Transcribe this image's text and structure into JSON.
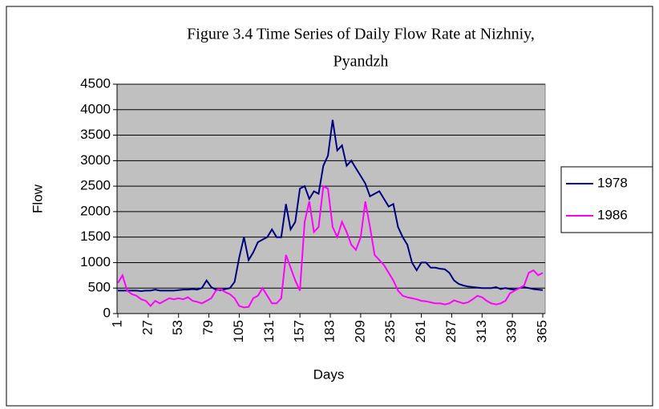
{
  "chart_data": {
    "type": "line",
    "title": [
      "Figure 3.4 Time Series of Daily Flow Rate at Nizhniy,",
      "Pyandzh"
    ],
    "x_label": "Days",
    "y_label": "Flow",
    "x": [
      1,
      5,
      9,
      13,
      17,
      21,
      25,
      29,
      33,
      37,
      41,
      45,
      49,
      53,
      57,
      61,
      65,
      69,
      73,
      77,
      81,
      85,
      89,
      93,
      97,
      101,
      105,
      109,
      113,
      117,
      121,
      125,
      129,
      133,
      137,
      141,
      145,
      149,
      153,
      157,
      161,
      165,
      169,
      173,
      177,
      181,
      185,
      189,
      193,
      197,
      201,
      205,
      209,
      213,
      217,
      221,
      225,
      229,
      233,
      237,
      241,
      245,
      249,
      253,
      257,
      261,
      265,
      269,
      273,
      277,
      281,
      285,
      289,
      293,
      297,
      301,
      305,
      309,
      313,
      317,
      321,
      325,
      329,
      333,
      337,
      341,
      345,
      349,
      353,
      357,
      361,
      365
    ],
    "series": [
      {
        "name": "1978",
        "color": "#000080",
        "values": [
          450,
          450,
          450,
          450,
          450,
          440,
          450,
          450,
          470,
          450,
          450,
          450,
          450,
          460,
          470,
          470,
          480,
          470,
          500,
          650,
          520,
          470,
          460,
          480,
          500,
          620,
          1100,
          1500,
          1050,
          1200,
          1400,
          1450,
          1500,
          1650,
          1500,
          1500,
          2150,
          1650,
          1800,
          2450,
          2500,
          2250,
          2400,
          2350,
          2900,
          3100,
          3800,
          3200,
          3300,
          2900,
          3000,
          2850,
          2700,
          2550,
          2300,
          2350,
          2400,
          2250,
          2100,
          2150,
          1700,
          1500,
          1350,
          1000,
          850,
          1000,
          1000,
          900,
          900,
          880,
          870,
          800,
          650,
          580,
          550,
          530,
          520,
          510,
          500,
          500,
          500,
          520,
          480,
          500,
          480,
          470,
          500,
          520,
          500,
          480,
          470,
          460
        ]
      },
      {
        "name": "1986",
        "color": "#ff00ff",
        "values": [
          600,
          750,
          450,
          380,
          350,
          280,
          250,
          150,
          250,
          200,
          250,
          300,
          280,
          300,
          280,
          320,
          250,
          230,
          200,
          250,
          300,
          450,
          480,
          420,
          380,
          300,
          150,
          120,
          130,
          300,
          350,
          500,
          350,
          200,
          200,
          300,
          1150,
          900,
          650,
          450,
          1800,
          2200,
          1600,
          1700,
          2500,
          2450,
          1700,
          1500,
          1800,
          1600,
          1350,
          1250,
          1500,
          2200,
          1700,
          1150,
          1050,
          950,
          800,
          650,
          450,
          350,
          320,
          300,
          280,
          250,
          240,
          220,
          200,
          200,
          180,
          200,
          260,
          230,
          200,
          220,
          280,
          350,
          320,
          250,
          200,
          180,
          200,
          250,
          400,
          450,
          500,
          550,
          800,
          850,
          750,
          800
        ]
      }
    ],
    "xlim": [
      1,
      365
    ],
    "xticks": [
      1,
      27,
      53,
      79,
      105,
      131,
      157,
      183,
      209,
      235,
      261,
      287,
      313,
      339,
      365
    ],
    "ylim": [
      0,
      4500
    ],
    "yticks": [
      0,
      500,
      1000,
      1500,
      2000,
      2500,
      3000,
      3500,
      4000,
      4500
    ],
    "grid": true,
    "plot_background": "#c0c0c0",
    "legend": "right"
  }
}
